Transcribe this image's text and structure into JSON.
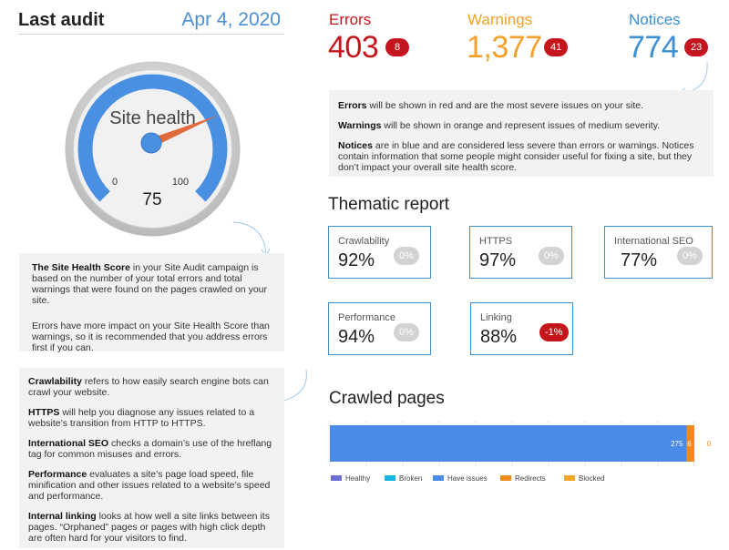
{
  "audit": {
    "title": "Last audit",
    "date": "Apr 4, 2020"
  },
  "gauge": {
    "label": "Site health",
    "min_label": "0",
    "max_label": "100",
    "score": 75,
    "score_label": "75",
    "colors": {
      "arc": "#4a90e2",
      "needle": "#e06a3b",
      "hub": "#4a90e2",
      "rim": "#c8c8c8"
    }
  },
  "score_info": {
    "p1_bold": "The Site Health Score",
    "p1_rest": " in your Site Audit campaign is based on the number of your total errors and total warnings that were found on the pages crawled on your site.",
    "p2": "Errors have more impact on your Site Health Score than warnings, so it is recommended that you address errors first if you can."
  },
  "thematic_info": {
    "items": [
      {
        "bold": "Crawlability",
        "rest": " refers to how easily search engine bots can crawl your website."
      },
      {
        "bold": "HTTPS",
        "rest": " will help you diagnose any issues related to a website’s transition from HTTP to HTTPS."
      },
      {
        "bold": "International SEO",
        "rest": " checks a domain’s use of the hreflang tag for common misuses and errors."
      },
      {
        "bold": "Performance",
        "rest": " evaluates a site’s page load speed, file minification and other issues related to a website’s speed and performance."
      },
      {
        "bold": "Internal linking",
        "rest": " looks at how well a site links between its pages. “Orphaned” pages or pages with high click depth are often hard for your visitors to find."
      }
    ]
  },
  "issues": {
    "errors": {
      "label": "Errors",
      "value": "403",
      "badge": "8",
      "color": "#c4151c"
    },
    "warnings": {
      "label": "Warnings",
      "value": "1,377",
      "badge": "41",
      "color": "#f5a028"
    },
    "notices": {
      "label": "Notices",
      "value": "774",
      "badge": "23",
      "color": "#3b8fd6"
    }
  },
  "issues_info": {
    "errors_bold": "Errors",
    "errors_rest": " will be shown in red and are the most severe issues on your site.",
    "warnings_bold": "Warnings",
    "warnings_rest": " will be shown in orange and represent issues of medium severity.",
    "notices_bold": "Notices",
    "notices_rest": " are in blue and are considered less severe than errors or warnings. Notices contain information that some people might consider useful for fixing a site, but they don’t impact your overall site health score."
  },
  "thematic_report": {
    "title": "Thematic report",
    "cards": {
      "crawlability": {
        "name": "Crawlability",
        "value": "92%",
        "change": "0%"
      },
      "https": {
        "name": "HTTPS",
        "value": "97%",
        "change": "0%"
      },
      "international_seo": {
        "name": "International SEO",
        "value": "77%",
        "change": "0%"
      },
      "performance": {
        "name": "Performance",
        "value": "94%",
        "change": "0%"
      },
      "linking": {
        "name": "Linking",
        "value": "88%",
        "change": "-1%"
      }
    }
  },
  "crawled_pages": {
    "title": "Crawled pages"
  },
  "chart_data": {
    "type": "bar",
    "orientation": "horizontal",
    "stacked": true,
    "title": "",
    "xlabel": "",
    "ylabel": "",
    "categories": [
      ""
    ],
    "series": [
      {
        "name": "Healthy",
        "values": [
          0
        ],
        "color": "#6b6fd4"
      },
      {
        "name": "Broken",
        "values": [
          0
        ],
        "color": "#16b5e0"
      },
      {
        "name": "Have issues",
        "values": [
          275
        ],
        "color": "#4a8be8"
      },
      {
        "name": "Redirects",
        "values": [
          6
        ],
        "color": "#f08a1c"
      },
      {
        "name": "Blocked",
        "values": [
          0
        ],
        "color": "#f5a623"
      }
    ],
    "data_labels": [
      "275",
      "6",
      "0"
    ],
    "xlim": [
      0,
      281
    ],
    "grid": true,
    "legend_position": "bottom-left"
  }
}
